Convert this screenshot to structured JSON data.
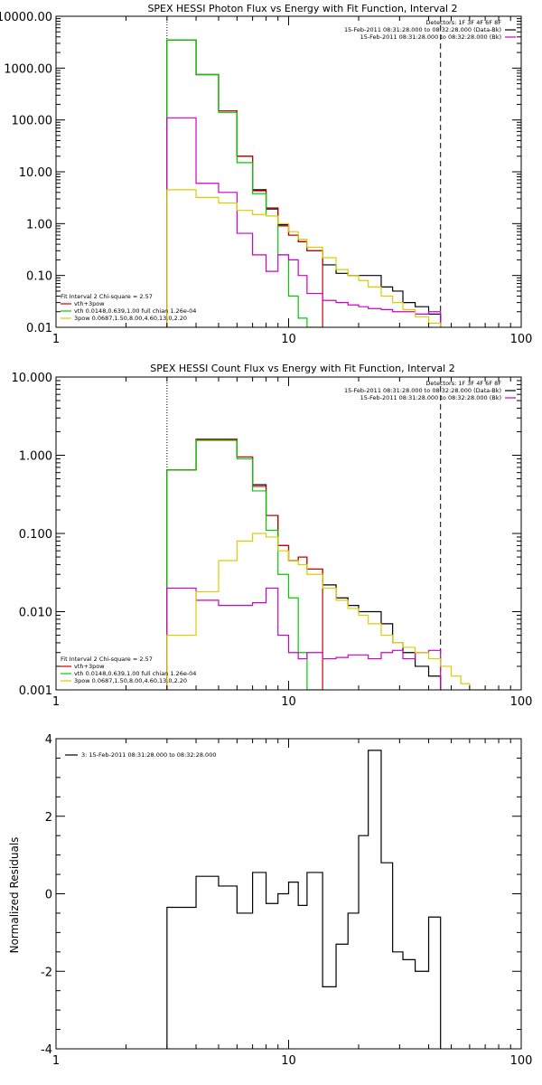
{
  "chart_data": [
    {
      "type": "line",
      "title": "SPEX HESSI Photon Flux vs Energy with Fit Function, Interval 2",
      "xscale": "log",
      "yscale": "log",
      "xlim": [
        1,
        100
      ],
      "ylim": [
        0.01,
        10000
      ],
      "x_tick_labels": [
        "1",
        "10",
        "100"
      ],
      "y_tick_labels": [
        "0.01",
        "0.10",
        "1.00",
        "10.00",
        "100.00",
        "1000.00",
        "10000.00"
      ],
      "y_tick_values": [
        0.01,
        0.1,
        1,
        10,
        100,
        1000,
        10000
      ],
      "vlines": [
        {
          "x": 3,
          "style": "dotted",
          "color": "#000000"
        },
        {
          "x": 45,
          "style": "dashed",
          "color": "#000000"
        }
      ],
      "legend_tr": [
        "Detectors: 1F 3F 4F 6F 8F",
        "15-Feb-2011 08:31:28.000 to 08:32:28.000 (Data-Bk)",
        "15-Feb-2011 08:31:28.000 to 08:32:28.000 (Bk)"
      ],
      "legend_bl_header": "Fit Interval 2   Chi-square = 2.57",
      "legend_bl": [
        "vth+3pow",
        "vth 0.0148,0.639,1.00  full chian 1.26e-04",
        "3pow 0.0687,1.50,8.00,4.60,13.0,2.20"
      ],
      "edges": [
        3.0,
        4.0,
        5.0,
        6.0,
        7.0,
        8.0,
        9.0,
        10.0,
        11.0,
        12.0,
        14.0,
        16.0,
        18.0,
        20.0,
        22.0,
        25.0,
        28.0,
        31.0,
        35.0,
        40.0,
        45.0,
        50.0
      ],
      "series": [
        {
          "color": "#000000",
          "values": [
            3500,
            750,
            150,
            20,
            4.5,
            2.0,
            0.95,
            0.6,
            0.45,
            0.3,
            0.16,
            0.11,
            0.1,
            0.1,
            0.1,
            0.06,
            0.05,
            0.03,
            0.025,
            0.018
          ]
        },
        {
          "color": "#cc0000",
          "values": [
            3500,
            750,
            150,
            20,
            4.3,
            1.9,
            0.9,
            0.6,
            0.45,
            0.3
          ]
        },
        {
          "color": "#00cc00",
          "values": [
            3500,
            750,
            140,
            15,
            3.8,
            1.4,
            0.25,
            0.04,
            0.015,
            0.005
          ]
        },
        {
          "color": "#cc00cc",
          "values": [
            110,
            6,
            4,
            0.65,
            0.25,
            0.12,
            0.25,
            0.2,
            0.1,
            0.045,
            0.033,
            0.03,
            0.027,
            0.025,
            0.023,
            0.022,
            0.02,
            0.02,
            0.018,
            0.02
          ]
        },
        {
          "color": "#ddcc00",
          "values": [
            4.5,
            3.2,
            2.5,
            1.8,
            1.5,
            1.4,
            1.0,
            0.7,
            0.5,
            0.35,
            0.22,
            0.13,
            0.1,
            0.08,
            0.06,
            0.04,
            0.03,
            0.022,
            0.016,
            0.012,
            0.009
          ]
        }
      ]
    },
    {
      "type": "line",
      "title": "SPEX HESSI Count Flux vs Energy with Fit Function, Interval 2",
      "xscale": "log",
      "yscale": "log",
      "xlim": [
        1,
        100
      ],
      "ylim": [
        0.001,
        10
      ],
      "x_tick_labels": [
        "1",
        "10",
        "100"
      ],
      "y_tick_labels": [
        "0.001",
        "0.010",
        "0.100",
        "1.000",
        "10.000"
      ],
      "y_tick_values": [
        0.001,
        0.01,
        0.1,
        1,
        10
      ],
      "vlines": [
        {
          "x": 3,
          "style": "dotted",
          "color": "#000000"
        },
        {
          "x": 45,
          "style": "dashed",
          "color": "#000000"
        }
      ],
      "legend_tr": [
        "Detectors: 1F 3F 4F 6F 8F",
        "15-Feb-2011 08:31:28.000 to 08:32:28.000 (Data-Bk)",
        "15-Feb-2011 08:31:28.000 to 08:32:28.000 (Bk)"
      ],
      "legend_bl_header": "Fit Interval 2   Chi-square = 2.57",
      "legend_bl": [
        "vth+3pow",
        "vth 0.0148,0.639,1.00  full chian 1.26e-04",
        "3pow 0.0687,1.50,8.00,4.60,13.0,2.20"
      ],
      "edges": [
        3.0,
        4.0,
        5.0,
        6.0,
        7.0,
        8.0,
        9.0,
        10.0,
        11.0,
        12.0,
        14.0,
        16.0,
        18.0,
        20.0,
        22.0,
        25.0,
        28.0,
        31.0,
        35.0,
        40.0,
        45.0,
        50.0,
        55.0,
        60.0,
        65.0,
        70.0
      ],
      "series": [
        {
          "color": "#000000",
          "values": [
            0.65,
            1.6,
            1.6,
            0.95,
            0.42,
            0.17,
            0.07,
            0.045,
            0.05,
            0.035,
            0.022,
            0.015,
            0.012,
            0.01,
            0.01,
            0.007,
            0.004,
            0.003,
            0.002,
            0.0015
          ]
        },
        {
          "color": "#cc0000",
          "values": [
            0.65,
            1.6,
            1.6,
            0.95,
            0.4,
            0.17,
            0.07,
            0.045,
            0.05,
            0.035
          ]
        },
        {
          "color": "#00cc00",
          "values": [
            0.65,
            1.55,
            1.55,
            0.9,
            0.35,
            0.11,
            0.03,
            0.015,
            0.003,
            0.0005
          ]
        },
        {
          "color": "#cc00cc",
          "values": [
            0.02,
            0.014,
            0.012,
            0.012,
            0.013,
            0.02,
            0.005,
            0.003,
            0.0025,
            0.003,
            0.0025,
            0.0026,
            0.0028,
            0.0028,
            0.0025,
            0.003,
            0.0032,
            0.0025,
            0.003,
            0.0032
          ]
        },
        {
          "color": "#ddcc00",
          "values": [
            0.005,
            0.018,
            0.045,
            0.08,
            0.1,
            0.09,
            0.06,
            0.045,
            0.04,
            0.03,
            0.02,
            0.014,
            0.011,
            0.009,
            0.007,
            0.005,
            0.004,
            0.0035,
            0.003,
            0.0025,
            0.002,
            0.0015,
            0.0012,
            0.001,
            0.0008
          ]
        }
      ]
    },
    {
      "type": "line",
      "title": "",
      "xscale": "log",
      "yscale": "linear",
      "xlim": [
        1,
        100
      ],
      "ylim": [
        -4,
        4
      ],
      "ylabel": "Normalized Residuals",
      "x_tick_labels": [
        "1",
        "10",
        "100"
      ],
      "y_tick_labels": [
        "-4",
        "-2",
        "0",
        "2",
        "4"
      ],
      "y_tick_values": [
        -4,
        -2,
        0,
        2,
        4
      ],
      "legend_tl": "3: 15-Feb-2011 08:31:28.000 to 08:32:28.000",
      "edges": [
        3.0,
        4.0,
        5.0,
        6.0,
        7.0,
        8.0,
        9.0,
        10.0,
        11.0,
        12.0,
        14.0,
        16.0,
        18.0,
        20.0,
        22.0,
        25.0,
        28.0,
        31.0,
        35.0,
        40.0,
        45.0
      ],
      "series": [
        {
          "color": "#000000",
          "values": [
            -0.35,
            0.45,
            0.2,
            -0.5,
            0.55,
            -0.25,
            0.0,
            0.3,
            -0.3,
            0.55,
            -2.4,
            -1.3,
            -0.5,
            1.5,
            3.7,
            0.8,
            -1.5,
            -1.7,
            -2.0,
            -0.6,
            -0.35
          ]
        }
      ]
    }
  ]
}
